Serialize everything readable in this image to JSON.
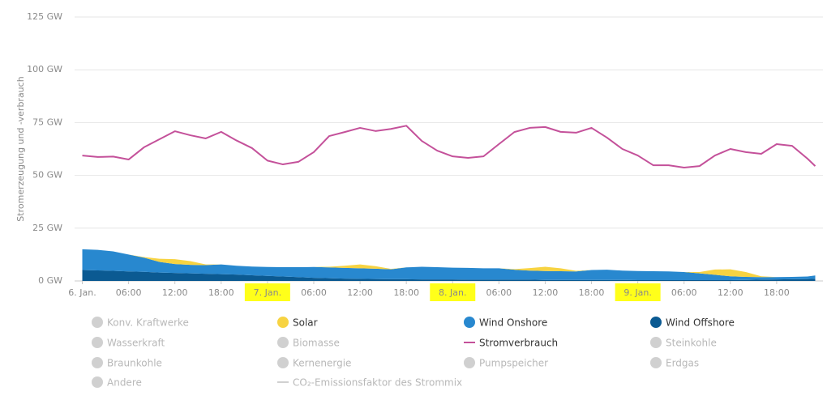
{
  "chart_data": {
    "type": "area",
    "y_axis_label": "Stromerzeugung und -verbrauch",
    "xlim": [
      -1,
      96
    ],
    "xticks": [
      {
        "value": 0,
        "label": "6. Jan."
      },
      {
        "value": 6,
        "label": "06:00"
      },
      {
        "value": 12,
        "label": "12:00"
      },
      {
        "value": 18,
        "label": "18:00"
      },
      {
        "value": 24,
        "label": "7. Jan.",
        "highlighted": true
      },
      {
        "value": 30,
        "label": "06:00"
      },
      {
        "value": 36,
        "label": "12:00"
      },
      {
        "value": 42,
        "label": "18:00"
      },
      {
        "value": 48,
        "label": "8. Jan.",
        "highlighted": true
      },
      {
        "value": 54,
        "label": "06:00"
      },
      {
        "value": 60,
        "label": "12:00"
      },
      {
        "value": 66,
        "label": "18:00"
      },
      {
        "value": 72,
        "label": "9. Jan.",
        "highlighted": true
      },
      {
        "value": 78,
        "label": "06:00"
      },
      {
        "value": 84,
        "label": "12:00"
      },
      {
        "value": 90,
        "label": "18:00"
      }
    ],
    "ylim": [
      0,
      125
    ],
    "yticks": [
      {
        "value": 0,
        "label": "0 GW"
      },
      {
        "value": 25,
        "label": "25 GW"
      },
      {
        "value": 50,
        "label": "50 GW"
      },
      {
        "value": 75,
        "label": "75 GW"
      },
      {
        "value": 100,
        "label": "100 GW"
      },
      {
        "value": 125,
        "label": "125 GW"
      }
    ],
    "grid": true,
    "x": [
      0,
      2,
      4,
      6,
      8,
      10,
      12,
      14,
      16,
      18,
      20,
      22,
      24,
      26,
      28,
      30,
      32,
      34,
      36,
      38,
      40,
      42,
      44,
      46,
      48,
      50,
      52,
      54,
      56,
      58,
      60,
      62,
      64,
      66,
      68,
      70,
      72,
      74,
      76,
      78,
      80,
      82,
      84,
      86,
      88,
      90,
      92,
      94,
      95
    ],
    "series": [
      {
        "name": "Solar",
        "color": "#f7d342",
        "kind": "area",
        "marker": "circle",
        "values": [
          0,
          0,
          0,
          0,
          0.3,
          1.5,
          2.3,
          1.8,
          0.3,
          0,
          0,
          0,
          0,
          0,
          0,
          0,
          0.3,
          1,
          1.8,
          1.2,
          0.2,
          0,
          0,
          0,
          0,
          0,
          0,
          0,
          0.3,
          1.2,
          2,
          1.4,
          0.3,
          0,
          0,
          0,
          0,
          0,
          0,
          0,
          0.6,
          2.5,
          3.3,
          2.3,
          0.4,
          0,
          0,
          0,
          0
        ]
      },
      {
        "name": "Wind Onshore",
        "color": "#2888cf",
        "kind": "area",
        "marker": "circle",
        "values": [
          9.8,
          9.7,
          9.2,
          8,
          6.7,
          5,
          4.2,
          4,
          4.1,
          4.6,
          4.2,
          4.1,
          4.2,
          4.4,
          4.7,
          5.1,
          5.1,
          5.1,
          5,
          4.9,
          4.7,
          5.6,
          6,
          5.8,
          5.6,
          5.6,
          5.4,
          5.4,
          4.7,
          4.3,
          4.2,
          4.1,
          4,
          4.7,
          4.8,
          4.4,
          4.3,
          4.2,
          4.1,
          3.8,
          3.2,
          2.5,
          1.8,
          1.4,
          1.2,
          1.1,
          1.1,
          1.2,
          1.6
        ]
      },
      {
        "name": "Wind Offshore",
        "color": "#0b5a92",
        "kind": "area",
        "marker": "circle",
        "values": [
          5.2,
          5,
          4.8,
          4.5,
          4.3,
          4,
          3.8,
          3.6,
          3.4,
          3.2,
          3,
          2.7,
          2.4,
          2.1,
          1.8,
          1.5,
          1.3,
          1.1,
          1,
          0.9,
          0.8,
          0.8,
          0.7,
          0.7,
          0.7,
          0.6,
          0.6,
          0.6,
          0.6,
          0.6,
          0.5,
          0.5,
          0.5,
          0.5,
          0.5,
          0.5,
          0.4,
          0.4,
          0.4,
          0.4,
          0.4,
          0.4,
          0.4,
          0.5,
          0.6,
          0.7,
          0.8,
          0.9,
          1.0
        ]
      },
      {
        "name": "Stromverbrauch",
        "color": "#c4519a",
        "kind": "line",
        "marker": "line",
        "values": [
          59.4,
          58.7,
          58.9,
          57.5,
          63.3,
          67.1,
          70.9,
          69,
          67.5,
          70.6,
          66.5,
          62.9,
          57,
          55.2,
          56.4,
          61,
          68.6,
          70.5,
          72.5,
          71,
          72,
          73.5,
          66.3,
          61.7,
          59,
          58.3,
          59,
          64.8,
          70.5,
          72.5,
          72.9,
          70.6,
          70.2,
          72.5,
          67.9,
          62.5,
          59.4,
          54.8,
          54.8,
          53.7,
          54.4,
          59.4,
          62.5,
          61,
          60.2,
          64.8,
          64,
          57.9,
          54.4
        ]
      }
    ],
    "inactive_legend": [
      {
        "name": "Konv. Kraftwerke",
        "marker": "circle"
      },
      {
        "name": "Wasserkraft",
        "marker": "circle"
      },
      {
        "name": "Biomasse",
        "marker": "circle"
      },
      {
        "name": "Steinkohle",
        "marker": "circle"
      },
      {
        "name": "Braunkohle",
        "marker": "circle"
      },
      {
        "name": "Kernenergie",
        "marker": "circle"
      },
      {
        "name": "Pumpspeicher",
        "marker": "circle"
      },
      {
        "name": "Erdgas",
        "marker": "circle"
      },
      {
        "name": "Andere",
        "marker": "circle"
      },
      {
        "name": "CO₂-Emissionsfaktor des Strommix",
        "marker": "line"
      }
    ],
    "inactive_color": "#d0d0d0"
  }
}
